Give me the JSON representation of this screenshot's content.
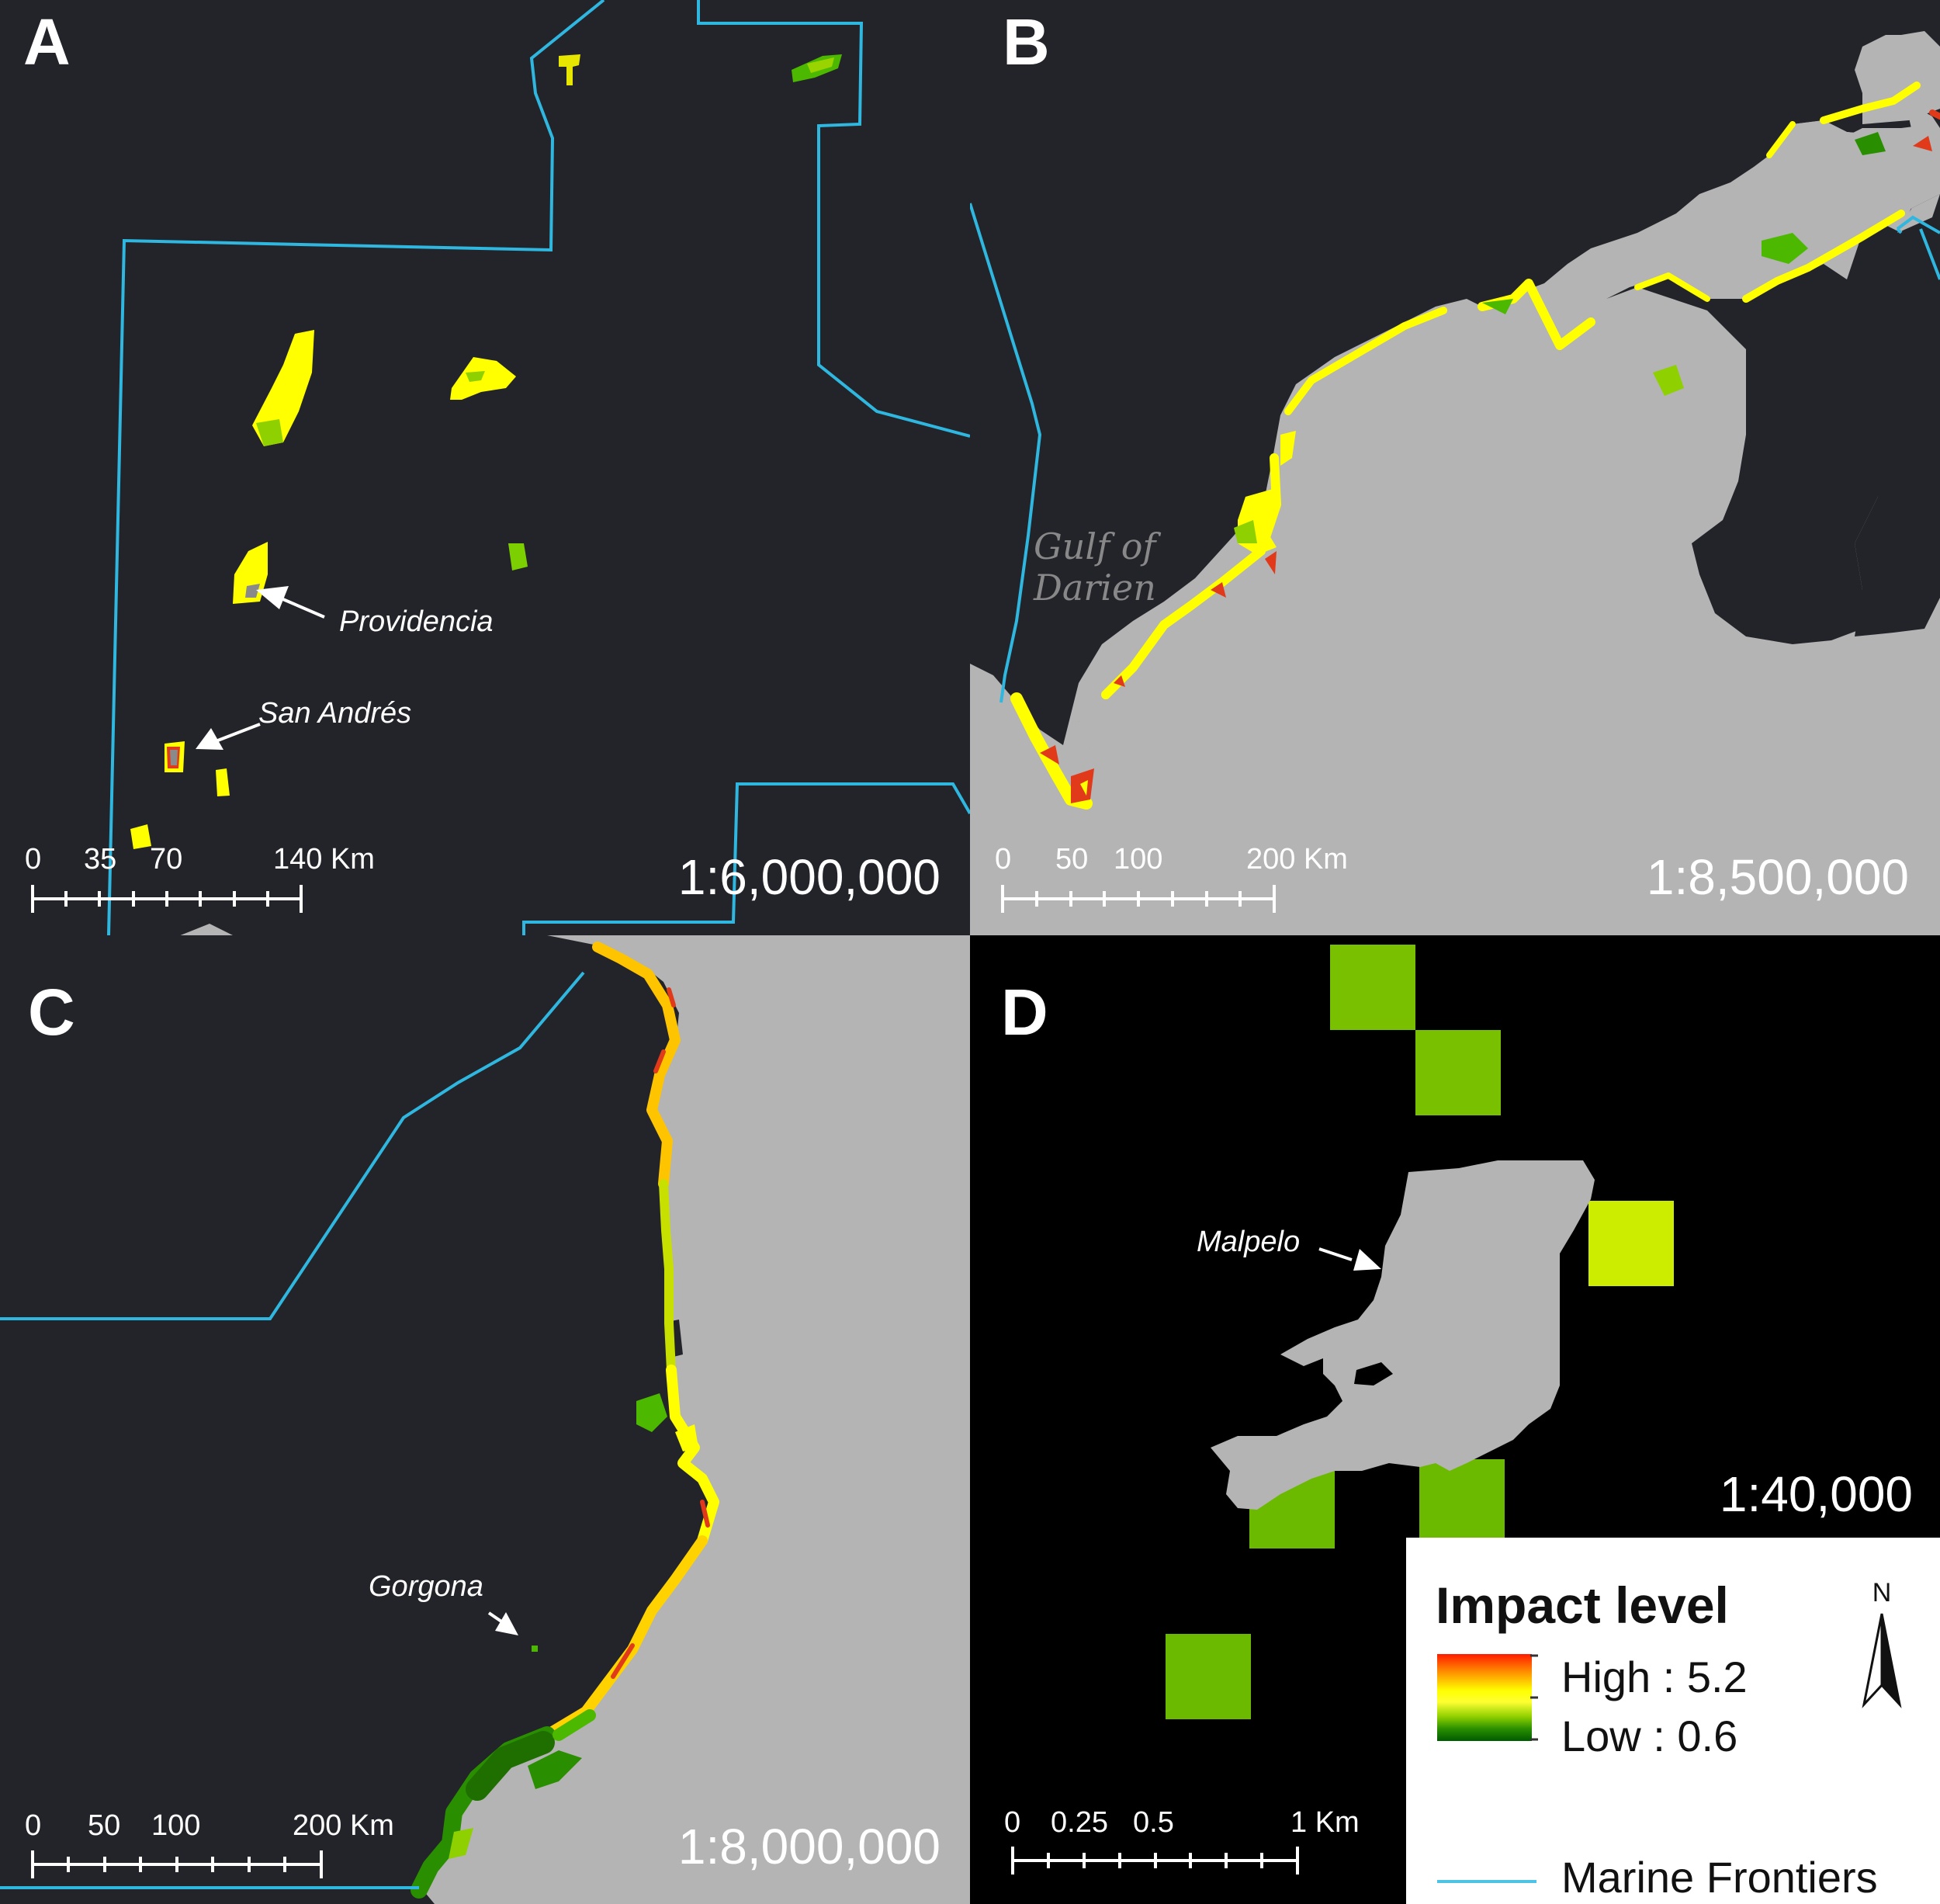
{
  "panels": {
    "a": {
      "letter": "A",
      "scale": "1:6,000,000",
      "scalebar": [
        "0",
        "35",
        "70",
        "140 Km"
      ],
      "places": {
        "providencia": "Providencia",
        "san_andres": "San Andrés"
      }
    },
    "b": {
      "letter": "B",
      "scale": "1:8,500,000",
      "scalebar": [
        "0",
        "50",
        "100",
        "200 Km"
      ],
      "gulf": "Gulf of Darien"
    },
    "c": {
      "letter": "C",
      "scale": "1:8,000,000",
      "scalebar": [
        "0",
        "50",
        "100",
        "200 Km"
      ],
      "places": {
        "gorgona": "Gorgona"
      }
    },
    "d": {
      "letter": "D",
      "scale": "1:40,000",
      "scalebar": [
        "0",
        "0.25",
        "0.5",
        "1 Km"
      ],
      "places": {
        "malpelo": "Malpelo"
      }
    }
  },
  "legend": {
    "title": "Impact level",
    "high": "High : 5.2",
    "low": "Low : 0.6",
    "frontier": "Marine Frontiers",
    "north": "N"
  },
  "colors": {
    "ocean": "#23242a",
    "land": "#b4b4b4",
    "frontier": "#2fb7e0",
    "impact_high": "#ff1a00",
    "impact_mid": "#ffff00",
    "impact_low": "#2a8f00"
  }
}
